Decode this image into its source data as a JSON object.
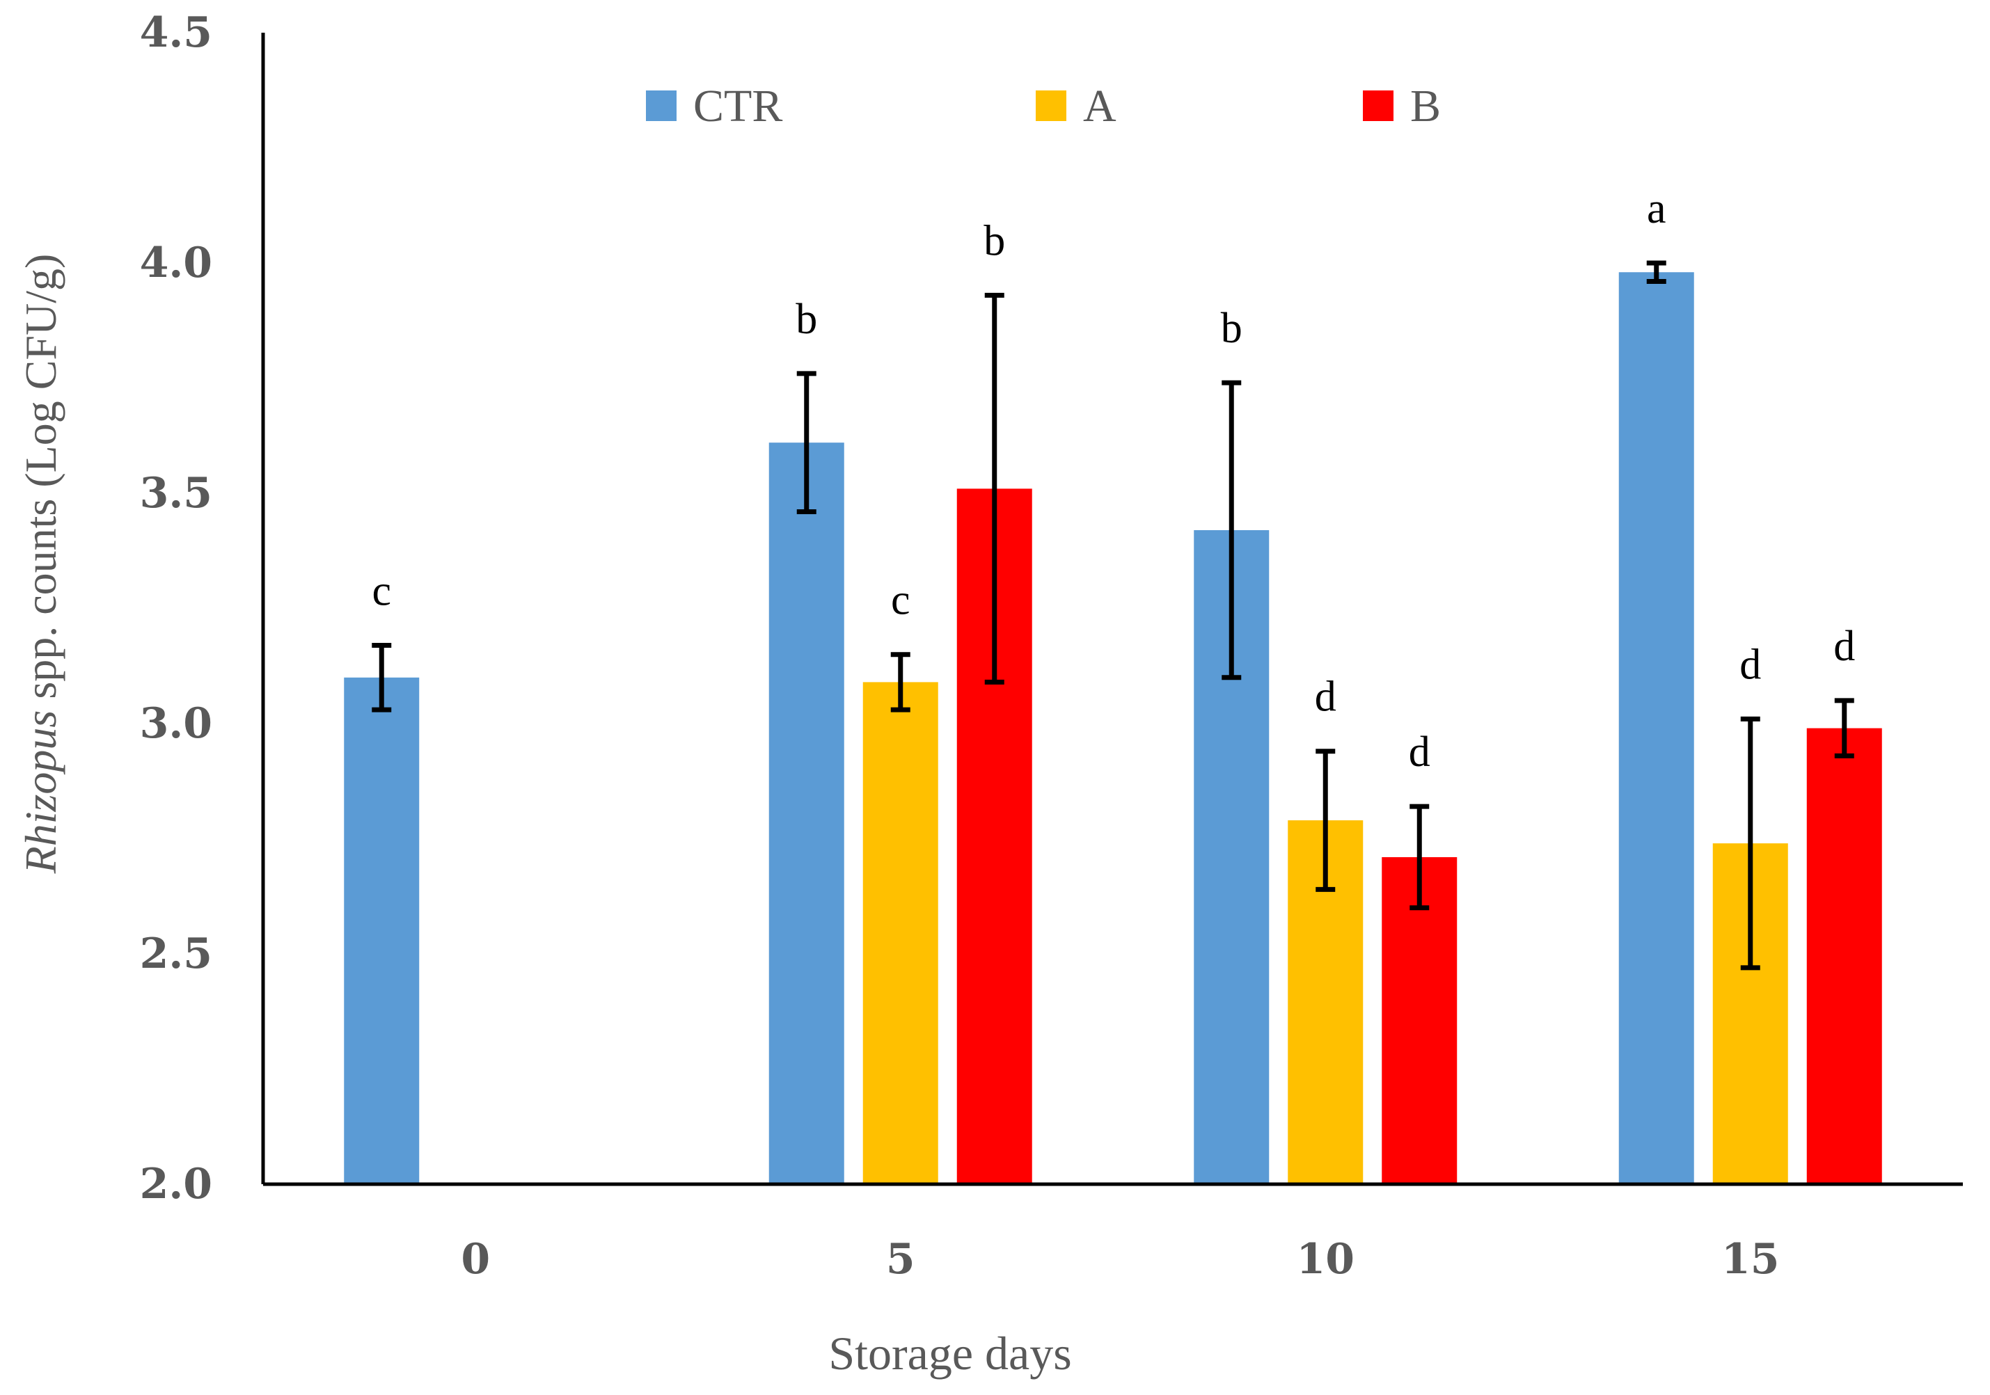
{
  "chart_data": {
    "type": "bar",
    "title": "",
    "xlabel": "Storage days",
    "ylabel_italic": "Rhizopus",
    "ylabel_rest": " spp. counts (Log CFU/g)",
    "categories": [
      "0",
      "5",
      "10",
      "15"
    ],
    "ylim": [
      2.0,
      4.5
    ],
    "yticks": [
      "2.0",
      "2.5",
      "3.0",
      "3.5",
      "4.0",
      "4.5"
    ],
    "legend_position": "top-center",
    "series": [
      {
        "name": "CTR",
        "color": "#5B9BD5",
        "values": [
          3.1,
          3.61,
          3.42,
          3.98
        ],
        "errors": [
          0.07,
          0.15,
          0.32,
          0.02
        ],
        "letters": [
          "c",
          "b",
          "b",
          "a"
        ]
      },
      {
        "name": "A",
        "color": "#FFC000",
        "values": [
          null,
          3.09,
          2.79,
          2.74
        ],
        "errors": [
          null,
          0.06,
          0.15,
          0.27
        ],
        "letters": [
          null,
          "c",
          "d",
          "d"
        ]
      },
      {
        "name": "B",
        "color": "#FF0000",
        "values": [
          null,
          3.51,
          2.71,
          2.99
        ],
        "errors": [
          null,
          0.42,
          0.11,
          0.06
        ],
        "letters": [
          null,
          "b",
          "d",
          "d"
        ]
      }
    ]
  }
}
